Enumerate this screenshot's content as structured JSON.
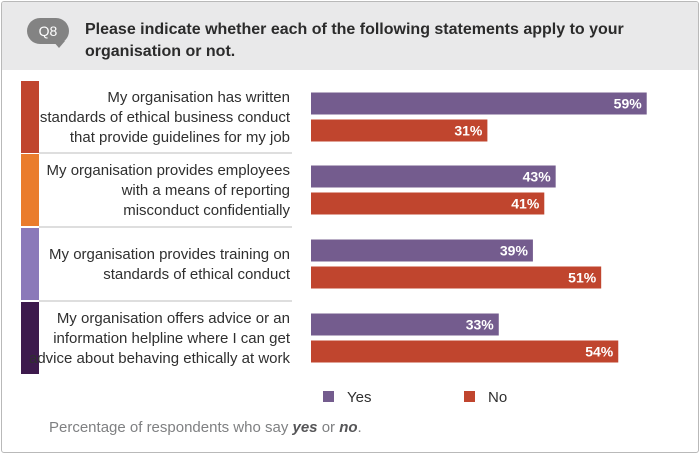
{
  "question": {
    "badge": "Q8",
    "text": "Please indicate whether each of the following statements apply to your organisation or not."
  },
  "chart_data": {
    "type": "bar",
    "orientation": "horizontal",
    "categories": [
      [
        "My organisation has written",
        "standards of ethical business conduct",
        "that provide guidelines for my job"
      ],
      [
        "My organisation provides employees",
        "with a means of reporting",
        "misconduct confidentially"
      ],
      [
        "My organisation provides training on",
        "standards of ethical conduct"
      ],
      [
        "My organisation offers advice or an",
        "information helpline where I can get",
        "advice about behaving ethically at work"
      ]
    ],
    "category_colors": [
      "#c0452e",
      "#ea7c2c",
      "#8b79b9",
      "#3d1a4d"
    ],
    "series": [
      {
        "name": "Yes",
        "color": "#745c8e",
        "values": [
          59,
          43,
          39,
          33
        ]
      },
      {
        "name": "No",
        "color": "#c0452e",
        "values": [
          31,
          41,
          51,
          54
        ]
      }
    ],
    "value_suffix": "%",
    "xlim": [
      0,
      100
    ],
    "grid": false,
    "legend_position": "bottom"
  },
  "footnote": {
    "prefix": "Percentage of respondents who say ",
    "yes": "yes",
    "middle": " or ",
    "no": "no",
    "suffix": "."
  }
}
